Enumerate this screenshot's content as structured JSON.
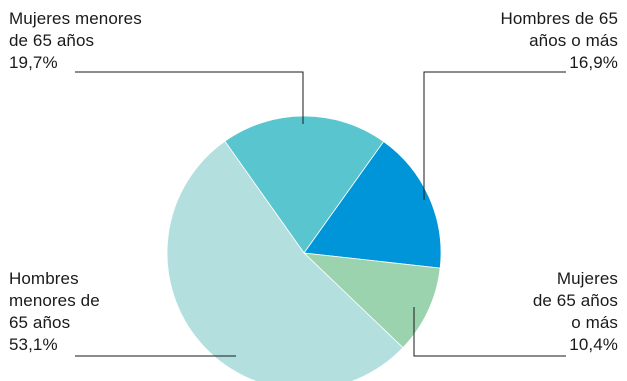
{
  "chart_data": {
    "type": "pie",
    "title": "",
    "slices": [
      {
        "label_lines": [
          "Mujeres menores",
          "de 65 años"
        ],
        "value_text": "19,7%",
        "value": 19.7,
        "color": "#59C6CF"
      },
      {
        "label_lines": [
          "Hombres de 65",
          "años o más"
        ],
        "value_text": "16,9%",
        "value": 16.9,
        "color": "#0094D8"
      },
      {
        "label_lines": [
          "Mujeres",
          "de 65 años",
          "o más"
        ],
        "value_text": "10,4%",
        "value": 10.4,
        "color": "#9BD3AE"
      },
      {
        "label_lines": [
          "Hombres",
          "menores de",
          "65 años"
        ],
        "value_text": "53,1%",
        "value": 53.1,
        "color": "#B4DFDF"
      }
    ],
    "legend": "none (labels with leader lines)"
  }
}
